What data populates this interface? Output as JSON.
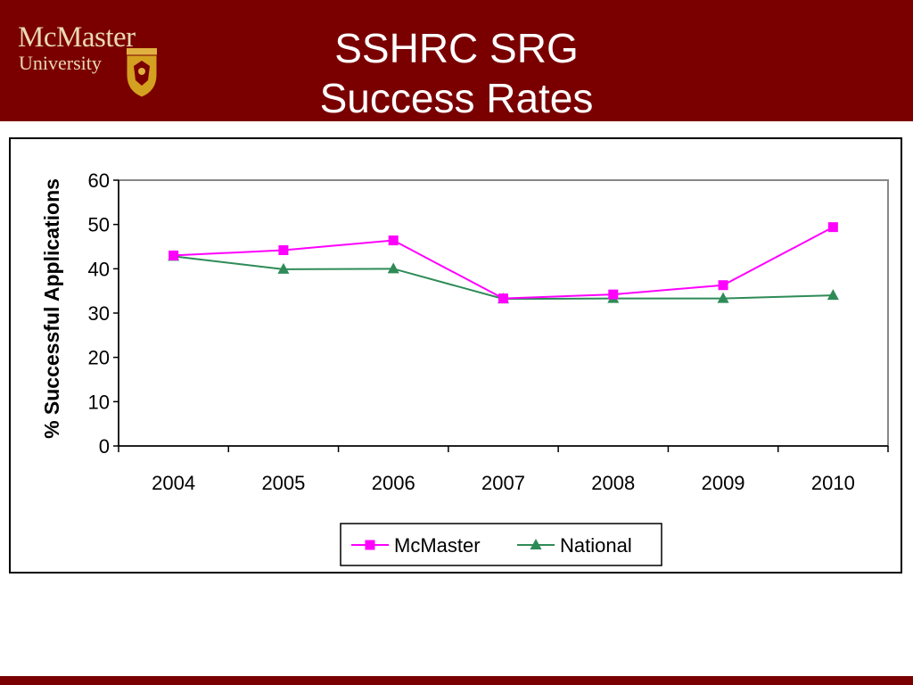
{
  "header": {
    "logo_line1": "McMaster",
    "logo_line2": "University",
    "title_line1": "SSHRC SRG",
    "title_line2": "Success Rates"
  },
  "colors": {
    "header_bg": "#7a0000",
    "mcmaster_series": "#ff00ff",
    "national_series": "#2e8b57",
    "logo_text": "#ead9b3"
  },
  "chart_data": {
    "type": "line",
    "title": "",
    "xlabel": "",
    "ylabel": "% Successful Applications",
    "categories": [
      "2004",
      "2005",
      "2006",
      "2007",
      "2008",
      "2009",
      "2010"
    ],
    "ylim": [
      0,
      60
    ],
    "yticks": [
      "0",
      "10",
      "20",
      "30",
      "40",
      "50",
      "60"
    ],
    "grid": false,
    "legend": "bottom",
    "series": [
      {
        "name": "McMaster",
        "marker": "square",
        "color": "#ff00ff",
        "values": [
          43.0,
          44.2,
          46.4,
          33.3,
          34.2,
          36.3,
          49.4
        ]
      },
      {
        "name": "National",
        "marker": "triangle",
        "color": "#2e8b57",
        "values": [
          42.8,
          39.9,
          40.0,
          33.2,
          33.3,
          33.3,
          34.0
        ]
      }
    ]
  }
}
